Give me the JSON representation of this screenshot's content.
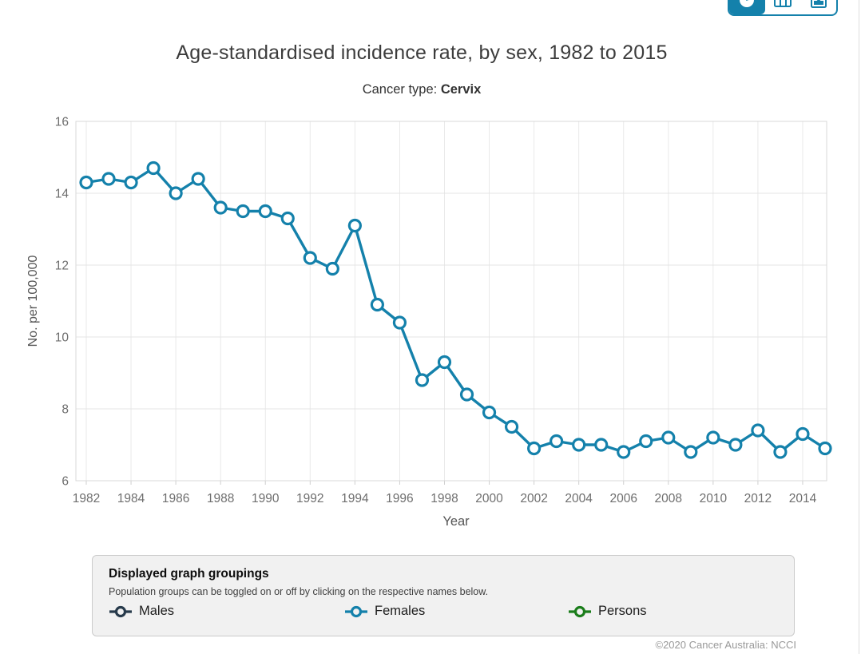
{
  "colors": {
    "accent": "#1481ab",
    "males": "#273a4b",
    "females": "#1481ab",
    "persons": "#1b7d1b"
  },
  "toolbar": {
    "buttons": [
      {
        "name": "chart-view",
        "icon": "pie-chart-icon",
        "active": true
      },
      {
        "name": "table-view",
        "icon": "table-icon",
        "active": false
      },
      {
        "name": "export",
        "icon": "export-icon",
        "active": false
      }
    ]
  },
  "header": {
    "title": "Age-standardised incidence rate, by sex, 1982 to 2015",
    "subtitle_label": "Cancer type:",
    "subtitle_value": "Cervix"
  },
  "chart_data": {
    "type": "line",
    "title": "Age-standardised incidence rate, by sex, 1982 to 2015",
    "xlabel": "Year",
    "ylabel": "No. per 100,000",
    "ylim": [
      6,
      16
    ],
    "yticks": [
      6,
      8,
      10,
      12,
      14,
      16
    ],
    "xticks": [
      1982,
      1984,
      1986,
      1988,
      1990,
      1992,
      1994,
      1996,
      1998,
      2000,
      2002,
      2004,
      2006,
      2008,
      2010,
      2012,
      2014
    ],
    "grid": true,
    "legend_position": "bottom",
    "x": [
      1982,
      1983,
      1984,
      1985,
      1986,
      1987,
      1988,
      1989,
      1990,
      1991,
      1992,
      1993,
      1994,
      1995,
      1996,
      1997,
      1998,
      1999,
      2000,
      2001,
      2002,
      2003,
      2004,
      2005,
      2006,
      2007,
      2008,
      2009,
      2010,
      2011,
      2012,
      2013,
      2014,
      2015
    ],
    "series": [
      {
        "name": "Females",
        "color": "#1481ab",
        "values": [
          14.3,
          14.4,
          14.3,
          14.7,
          14.0,
          14.4,
          13.6,
          13.5,
          13.5,
          13.3,
          12.2,
          11.9,
          13.1,
          10.9,
          10.4,
          8.8,
          9.3,
          8.4,
          7.9,
          7.5,
          6.9,
          7.1,
          7.0,
          7.0,
          6.8,
          7.1,
          7.2,
          6.8,
          7.2,
          7.0,
          7.4,
          6.8,
          7.3,
          6.9
        ]
      }
    ]
  },
  "legend": {
    "title": "Displayed graph groupings",
    "description": "Population groups can be toggled on or off by clicking on the respective names below.",
    "items": [
      {
        "label": "Males",
        "color": "#273a4b"
      },
      {
        "label": "Females",
        "color": "#1481ab"
      },
      {
        "label": "Persons",
        "color": "#1b7d1b"
      }
    ]
  },
  "footer": {
    "copyright": "©2020 Cancer Australia: NCCI"
  }
}
